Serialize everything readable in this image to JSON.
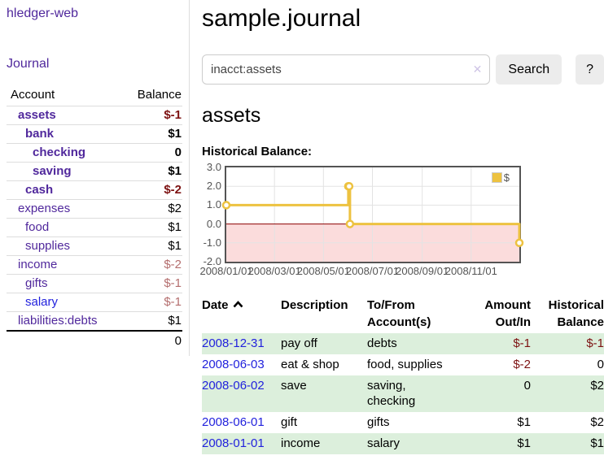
{
  "palette": {
    "link_purple": "#50289c",
    "link_blue": "#2222dd",
    "negative_strong": "#7d1212",
    "negative_soft": "#b46e6e",
    "row_green": "#dcefdc",
    "button_bg": "#ececec",
    "input_border": "#cccccc",
    "clear_icon_color": "#cfc5e6",
    "sidebar_divider": "#dddddd"
  },
  "sidebar": {
    "brand": "hledger-web",
    "journal_link": "Journal",
    "accounts": {
      "header_account": "Account",
      "header_balance": "Balance",
      "rows": [
        {
          "name": "assets",
          "balance": "$-1"
        },
        {
          "name": "bank",
          "balance": "$1"
        },
        {
          "name": "checking",
          "balance": "0"
        },
        {
          "name": "saving",
          "balance": "$1"
        },
        {
          "name": "cash",
          "balance": "$-2"
        },
        {
          "name": "expenses",
          "balance": "$2"
        },
        {
          "name": "food",
          "balance": "$1"
        },
        {
          "name": "supplies",
          "balance": "$1"
        },
        {
          "name": "income",
          "balance": "$-2"
        },
        {
          "name": "gifts",
          "balance": "$-1"
        },
        {
          "name": "salary",
          "balance": "$-1"
        },
        {
          "name": "liabilities:debts",
          "balance": "$1"
        }
      ],
      "total": "0"
    }
  },
  "main": {
    "title": "sample.journal",
    "search": {
      "value": "inacct:assets",
      "clear_icon": "✕",
      "button_label": "Search",
      "help_label": "?"
    },
    "account_heading": "assets",
    "chart_label": "Historical Balance:"
  },
  "chart_data": {
    "type": "line",
    "title": "Historical Balance",
    "step": true,
    "grid": true,
    "legend_position": "top-right",
    "xlim": [
      "2008-01-01",
      "2008-12-31"
    ],
    "ylim": [
      -2,
      3
    ],
    "y_ticks": [
      3,
      2,
      1,
      0,
      -1,
      -2
    ],
    "x_ticks": [
      {
        "label": "2008/01/01",
        "date": "2008-01-01"
      },
      {
        "label": "2008/03/01",
        "date": "2008-03-01"
      },
      {
        "label": "2008/05/01",
        "date": "2008-05-01"
      },
      {
        "label": "2008/07/01",
        "date": "2008-07-01"
      },
      {
        "label": "2008/09/01",
        "date": "2008-09-01"
      },
      {
        "label": "2008/11/01",
        "date": "2008-11-01"
      }
    ],
    "series": [
      {
        "name": "$",
        "color": "#edc240",
        "points": [
          [
            "2008-01-01",
            1
          ],
          [
            "2008-06-01",
            2
          ],
          [
            "2008-06-02",
            2
          ],
          [
            "2008-06-03",
            0
          ],
          [
            "2008-12-31",
            -1
          ]
        ]
      }
    ],
    "colors": {
      "grid": "#e3e3e3",
      "border": "#545454",
      "zero_line": "#8b0000",
      "negative_region": "#fbdcdc",
      "tick_text": "#545454"
    }
  },
  "register": {
    "headers": {
      "date": "Date",
      "sort_icon": "chevron-up",
      "description": "Description",
      "account": "To/From Account(s)",
      "amount": "Amount Out/In",
      "balance": "Historical Balance"
    },
    "rows": [
      {
        "date": "2008-12-31",
        "description": "pay off",
        "accounts": "debts",
        "amount": "$-1",
        "balance": "$-1"
      },
      {
        "date": "2008-06-03",
        "description": "eat & shop",
        "accounts": "food, supplies",
        "amount": "$-2",
        "balance": "0"
      },
      {
        "date": "2008-06-02",
        "description": "save",
        "accounts": "saving, checking",
        "amount": "0",
        "balance": "$2"
      },
      {
        "date": "2008-06-01",
        "description": "gift",
        "accounts": "gifts",
        "amount": "$1",
        "balance": "$2"
      },
      {
        "date": "2008-01-01",
        "description": "income",
        "accounts": "salary",
        "amount": "$1",
        "balance": "$1"
      }
    ]
  }
}
